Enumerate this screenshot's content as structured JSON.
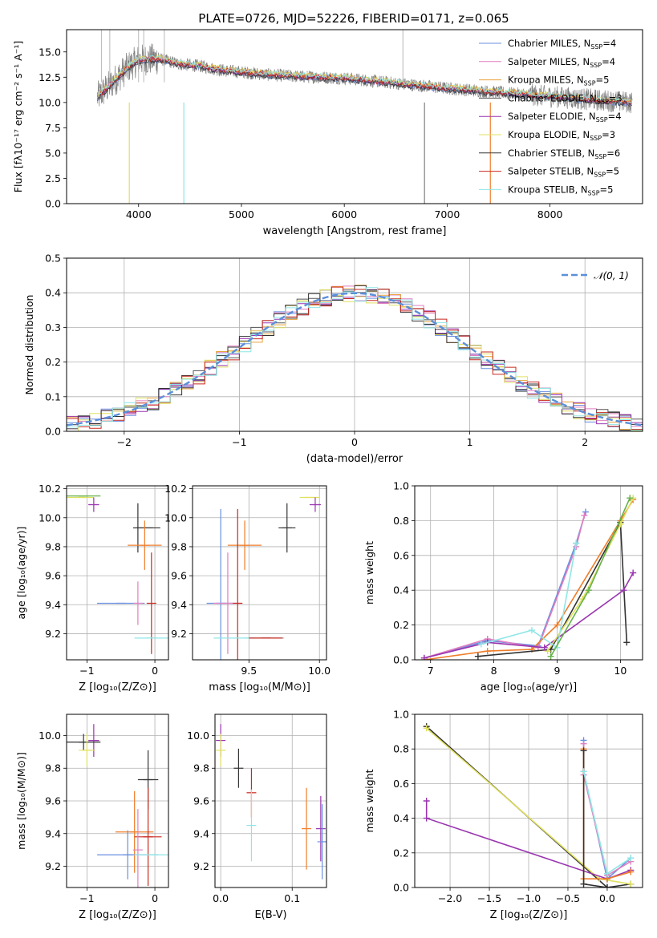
{
  "figure_title": "PLATE=0726, MJD=52226, FIBERID=0171, z=0.065",
  "colors": {
    "c0": "#6a8fe0",
    "c1": "#e07fc0",
    "c2": "#e8a33a",
    "c3": "#555555",
    "c4": "#9a35b0",
    "c5": "#e0e060",
    "c6": "#333333",
    "c7": "#c8281e",
    "c8": "#8fe6e6",
    "orange": "#ef7d2a",
    "green": "#66b24a",
    "blue": "#5b8fd9",
    "gray": "#808080",
    "lightgray": "#b8b8b8"
  },
  "chart_data": [
    {
      "id": "spectrum",
      "type": "line",
      "xlabel": "wavelength [Angstrom, rest frame]",
      "ylabel": "Flux [fλ10⁻¹⁷ erg cm⁻² s⁻¹ A⁻¹]",
      "xlim": [
        3300,
        8900
      ],
      "ylim": [
        0,
        17.2
      ],
      "xticks": [
        "4000",
        "5000",
        "6000",
        "7000",
        "8000"
      ],
      "yticks": [
        "0.0",
        "2.5",
        "5.0",
        "7.5",
        "10.0",
        "12.5",
        "15.0"
      ],
      "legend_position": "upper-right",
      "legend": [
        {
          "label": "Chabrier MILES, N",
          "n": "=4",
          "color": "c0"
        },
        {
          "label": "Salpeter MILES, N",
          "n": "=4",
          "color": "c1"
        },
        {
          "label": "Kroupa MILES, N",
          "n": "=5",
          "color": "c2"
        },
        {
          "label": "Chabrier ELODIE, N",
          "n": "=3",
          "color": "c3"
        },
        {
          "label": "Salpeter ELODIE, N",
          "n": "=4",
          "color": "c4"
        },
        {
          "label": "Kroupa ELODIE, N",
          "n": "=3",
          "color": "c5"
        },
        {
          "label": "Chabrier STELIB, N",
          "n": "=6",
          "color": "c6"
        },
        {
          "label": "Salpeter STELIB, N",
          "n": "=5",
          "color": "c7"
        },
        {
          "label": "Kroupa STELIB, N",
          "n": "=5",
          "color": "c8"
        }
      ],
      "legend_subscript": "SSP",
      "continuum": [
        [
          3600,
          10.5
        ],
        [
          3700,
          11.5
        ],
        [
          3800,
          12.5
        ],
        [
          3900,
          13.5
        ],
        [
          4000,
          14.2
        ],
        [
          4200,
          14.3
        ],
        [
          4400,
          13.8
        ],
        [
          4600,
          13.6
        ],
        [
          4800,
          13.2
        ],
        [
          5000,
          13.0
        ],
        [
          5200,
          12.8
        ],
        [
          5500,
          12.6
        ],
        [
          6000,
          12.4
        ],
        [
          6500,
          11.9
        ],
        [
          7000,
          11.4
        ],
        [
          7500,
          11.0
        ],
        [
          8000,
          10.6
        ],
        [
          8500,
          10.2
        ],
        [
          8800,
          10.0
        ]
      ]
    },
    {
      "id": "residuals",
      "type": "histogram",
      "xlabel": "(data-model)/error",
      "ylabel": "Normed distribution",
      "xlim": [
        -2.5,
        2.5
      ],
      "ylim": [
        0,
        0.5
      ],
      "xticks": [
        "−2",
        "−1",
        "0",
        "1",
        "2"
      ],
      "yticks": [
        "0.0",
        "0.1",
        "0.2",
        "0.3",
        "0.4",
        "0.5"
      ],
      "legend_position": "upper-right",
      "legend_label": "𝒩(0, 1)",
      "bin_width": 0.1,
      "reference_curve": {
        "type": "gaussian",
        "mean": 0,
        "sigma": 1,
        "color": "blue"
      }
    },
    {
      "id": "age-vs-Z",
      "type": "errorbar",
      "xlabel": "Z [log₁₀(Z/Z⊙)]",
      "ylabel": "age  [log₁₀(age/yr)]",
      "xlim": [
        -1.3,
        0.2
      ],
      "ylim": [
        9.02,
        10.22
      ],
      "xticks": [
        "−1",
        "0"
      ],
      "yticks": [
        "9.2",
        "9.4",
        "9.6",
        "9.8",
        "10.0",
        "10.2"
      ],
      "points": [
        {
          "x": -1.05,
          "y": 10.15,
          "xerr": 0.25,
          "yerr": 0.0,
          "color": "green"
        },
        {
          "x": -1.1,
          "y": 10.14,
          "xerr": 0.2,
          "yerr": 0.0,
          "color": "c5"
        },
        {
          "x": -0.9,
          "y": 10.09,
          "xerr": 0.08,
          "yerr": 0.05,
          "color": "c4"
        },
        {
          "x": -0.25,
          "y": 9.93,
          "xerr": 0.0,
          "yerr": 0.17,
          "color": "c6"
        },
        {
          "x": -0.1,
          "y": 9.93,
          "xerr": 0.18,
          "yerr": 0.0,
          "color": "c6"
        },
        {
          "x": -0.15,
          "y": 9.81,
          "xerr": 0.25,
          "yerr": 0.17,
          "color": "orange"
        },
        {
          "x": -0.5,
          "y": 9.41,
          "xerr": 0.35,
          "yerr": 0.0,
          "color": "c0"
        },
        {
          "x": -0.25,
          "y": 9.41,
          "xerr": 0.0,
          "yerr": 0.15,
          "color": "c1"
        },
        {
          "x": -0.05,
          "y": 9.41,
          "xerr": 0.0,
          "yerr": 0.35,
          "color": "c7"
        },
        {
          "x": -0.05,
          "y": 9.17,
          "xerr": 0.25,
          "yerr": 0.0,
          "color": "c8"
        }
      ]
    },
    {
      "id": "age-vs-mass",
      "type": "errorbar",
      "xlabel": "mass [log₁₀(M/M⊙)]",
      "ylabel": "",
      "xlim": [
        9.1,
        10.05
      ],
      "ylim": [
        9.02,
        10.22
      ],
      "xticks": [
        "9.5",
        "10.0"
      ],
      "yticks": [
        "9.2",
        "9.4",
        "9.6",
        "9.8",
        "10.0",
        "10.2"
      ],
      "points": [
        {
          "x": 9.93,
          "y": 10.14,
          "xerr": 0.07,
          "yerr": 0.0,
          "color": "c5"
        },
        {
          "x": 9.97,
          "y": 10.09,
          "xerr": 0.04,
          "yerr": 0.05,
          "color": "c4"
        },
        {
          "x": 9.77,
          "y": 9.93,
          "xerr": 0.06,
          "yerr": 0.17,
          "color": "c6"
        },
        {
          "x": 9.47,
          "y": 9.81,
          "xerr": 0.12,
          "yerr": 0.17,
          "color": "orange"
        },
        {
          "x": 9.3,
          "y": 9.41,
          "xerr": 0.1,
          "yerr": 0.65,
          "color": "c0"
        },
        {
          "x": 9.35,
          "y": 9.41,
          "xerr": 0.1,
          "yerr": 0.35,
          "color": "c1"
        },
        {
          "x": 9.42,
          "y": 9.41,
          "xerr": 0.0,
          "yerr": 0.65,
          "color": "c7"
        },
        {
          "x": 9.5,
          "y": 9.17,
          "xerr": 0.25,
          "yerr": 0.0,
          "color": "c8"
        },
        {
          "x": 9.62,
          "y": 9.17,
          "xerr": 0.12,
          "yerr": 0.0,
          "color": "c7"
        }
      ]
    },
    {
      "id": "weight-vs-age",
      "type": "line",
      "xlabel": "age  [log₁₀(age/yr)]",
      "ylabel": "mass weight",
      "xlim": [
        6.75,
        10.35
      ],
      "ylim": [
        0,
        1
      ],
      "xticks": [
        "7",
        "8",
        "9",
        "10"
      ],
      "yticks": [
        "0.0",
        "0.2",
        "0.4",
        "0.6",
        "0.8",
        "1.0"
      ],
      "series": [
        {
          "color": "c0",
          "x": [
            6.9,
            7.9,
            8.7,
            9.3,
            9.45
          ],
          "y": [
            0.01,
            0.11,
            0.08,
            0.67,
            0.85
          ]
        },
        {
          "color": "c1",
          "x": [
            6.9,
            7.9,
            8.7,
            9.3,
            9.43
          ],
          "y": [
            0.01,
            0.12,
            0.07,
            0.65,
            0.83
          ]
        },
        {
          "color": "orange",
          "x": [
            6.9,
            7.9,
            8.6,
            9.0,
            10.0,
            10.2
          ],
          "y": [
            0.0,
            0.05,
            0.06,
            0.2,
            0.8,
            0.92
          ]
        },
        {
          "color": "c6",
          "x": [
            7.75,
            8.9,
            10.0,
            10.1
          ],
          "y": [
            0.02,
            0.06,
            0.79,
            0.1
          ]
        },
        {
          "color": "c4",
          "x": [
            6.9,
            7.9,
            8.8,
            10.05,
            10.2
          ],
          "y": [
            0.01,
            0.1,
            0.07,
            0.4,
            0.5
          ]
        },
        {
          "color": "c5",
          "x": [
            8.85,
            9.4,
            10.0,
            10.2
          ],
          "y": [
            0.05,
            0.35,
            0.78,
            0.93
          ]
        },
        {
          "color": "c8",
          "x": [
            7.8,
            8.6,
            9.0,
            9.3
          ],
          "y": [
            0.09,
            0.17,
            0.07,
            0.67
          ]
        },
        {
          "color": "green",
          "x": [
            8.9,
            9.5,
            10.15
          ],
          "y": [
            0.02,
            0.4,
            0.93
          ]
        }
      ]
    },
    {
      "id": "mass-vs-Z",
      "type": "errorbar",
      "xlabel": "Z [log₁₀(Z/Z⊙)]",
      "ylabel": "mass [log₁₀(M/M⊙)]",
      "xlim": [
        -1.3,
        0.2
      ],
      "ylim": [
        9.07,
        10.13
      ],
      "xticks": [
        "−1",
        "0"
      ],
      "yticks": [
        "9.2",
        "9.4",
        "9.6",
        "9.8",
        "10.0"
      ],
      "points": [
        {
          "x": -0.9,
          "y": 9.97,
          "xerr": 0.08,
          "yerr": 0.1,
          "color": "c4"
        },
        {
          "x": -1.05,
          "y": 9.96,
          "xerr": 0.25,
          "yerr": 0.05,
          "color": "c6"
        },
        {
          "x": -1.0,
          "y": 9.91,
          "xerr": 0.12,
          "yerr": 0.1,
          "color": "c5"
        },
        {
          "x": -0.1,
          "y": 9.73,
          "xerr": 0.15,
          "yerr": 0.18,
          "color": "c6"
        },
        {
          "x": -0.3,
          "y": 9.41,
          "xerr": 0.28,
          "yerr": 0.25,
          "color": "orange"
        },
        {
          "x": -0.1,
          "y": 9.38,
          "xerr": 0.2,
          "yerr": 0.3,
          "color": "c7"
        },
        {
          "x": -0.4,
          "y": 9.27,
          "xerr": 0.45,
          "yerr": 0.15,
          "color": "c0"
        },
        {
          "x": -0.25,
          "y": 9.3,
          "xerr": 0.0,
          "yerr": 0.25,
          "color": "c1"
        },
        {
          "x": -0.05,
          "y": 9.27,
          "xerr": 0.25,
          "yerr": 0.0,
          "color": "c8"
        }
      ]
    },
    {
      "id": "mass-vs-EBV",
      "type": "errorbar",
      "xlabel": "E(B-V)",
      "ylabel": "",
      "xlim": [
        -0.008,
        0.148
      ],
      "ylim": [
        9.07,
        10.13
      ],
      "xticks": [
        "0.0",
        "0.1"
      ],
      "yticks": [
        "9.2",
        "9.4",
        "9.6",
        "9.8",
        "10.0"
      ],
      "points": [
        {
          "x": 0.0,
          "y": 9.97,
          "xerr": 0.0,
          "yerr": 0.1,
          "color": "c4"
        },
        {
          "x": 0.0,
          "y": 9.91,
          "xerr": 0.0,
          "yerr": 0.1,
          "color": "c5"
        },
        {
          "x": 0.025,
          "y": 9.8,
          "xerr": 0.0,
          "yerr": 0.12,
          "color": "c6"
        },
        {
          "x": 0.043,
          "y": 9.65,
          "xerr": 0.0,
          "yerr": 0.15,
          "color": "c7"
        },
        {
          "x": 0.043,
          "y": 9.45,
          "xerr": 0.0,
          "yerr": 0.22,
          "color": "c8"
        },
        {
          "x": 0.12,
          "y": 9.43,
          "xerr": 0.0,
          "yerr": 0.25,
          "color": "orange"
        },
        {
          "x": 0.14,
          "y": 9.43,
          "xerr": 0.0,
          "yerr": 0.2,
          "color": "c4"
        },
        {
          "x": 0.142,
          "y": 9.35,
          "xerr": 0.0,
          "yerr": 0.23,
          "color": "c0"
        }
      ]
    },
    {
      "id": "weight-vs-Z",
      "type": "line",
      "xlabel": "Z [log₁₀(Z/Z⊙)]",
      "ylabel": "mass weight",
      "xlim": [
        -2.45,
        0.45
      ],
      "ylim": [
        0,
        1
      ],
      "xticks": [
        "−2.0",
        "−1.5",
        "−1.0",
        "−0.5",
        "0.0"
      ],
      "yticks": [
        "0.0",
        "0.2",
        "0.4",
        "0.6",
        "0.8",
        "1.0"
      ],
      "series": [
        {
          "color": "c6",
          "x": [
            -2.3,
            0.0,
            0.3
          ],
          "y": [
            0.93,
            0.0,
            0.02
          ]
        },
        {
          "color": "c5",
          "x": [
            -2.3,
            -0.1,
            0.3
          ],
          "y": [
            0.92,
            0.05,
            0.02
          ]
        },
        {
          "color": "c4",
          "x": [
            -2.3,
            -2.3,
            0.0,
            0.3
          ],
          "y": [
            0.5,
            0.4,
            0.05,
            0.1
          ]
        },
        {
          "color": "c0",
          "x": [
            -0.3,
            -0.3,
            0.0,
            0.3
          ],
          "y": [
            0.85,
            0.67,
            0.05,
            0.17
          ]
        },
        {
          "color": "c1",
          "x": [
            -0.3,
            -0.3,
            0.0,
            0.3
          ],
          "y": [
            0.83,
            0.65,
            0.07,
            0.15
          ]
        },
        {
          "color": "orange",
          "x": [
            -0.3,
            -0.3,
            0.0,
            0.3
          ],
          "y": [
            0.8,
            0.05,
            0.05,
            0.09
          ]
        },
        {
          "color": "c6",
          "x": [
            -0.3,
            -0.3,
            0.0
          ],
          "y": [
            0.79,
            0.02,
            0.0
          ]
        },
        {
          "color": "c8",
          "x": [
            -0.3,
            0.0,
            0.3
          ],
          "y": [
            0.67,
            0.08,
            0.17
          ]
        }
      ]
    }
  ]
}
